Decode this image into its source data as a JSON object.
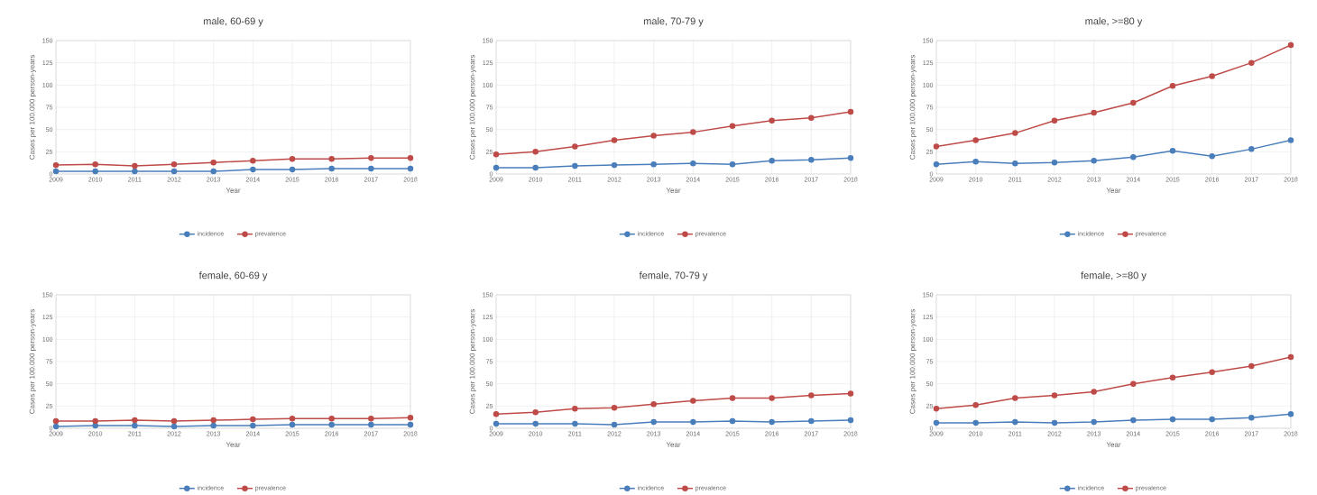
{
  "chart_data": [
    {
      "type": "line",
      "title": "male, 60-69 y",
      "xlabel": "Year",
      "ylabel": "Cases per 100.000 person-years",
      "categories": [
        "2009",
        "2010",
        "2011",
        "2012",
        "2013",
        "2014",
        "2015",
        "2016",
        "2017",
        "2018"
      ],
      "ylim": [
        0,
        150
      ],
      "yticks": [
        0,
        25,
        50,
        75,
        100,
        125,
        150
      ],
      "grid": true,
      "legend": "bottom",
      "marker": "circle",
      "series": [
        {
          "name": "incidence",
          "color": "#4a7ebb",
          "values": [
            3,
            3,
            3,
            3,
            3,
            5,
            5,
            6,
            6,
            6
          ]
        },
        {
          "name": "prevalence",
          "color": "#be4b48",
          "values": [
            10,
            11,
            9,
            11,
            13,
            15,
            17,
            17,
            18,
            18
          ]
        }
      ]
    },
    {
      "type": "line",
      "title": "male, 70-79 y",
      "xlabel": "Year",
      "ylabel": "Cases per 100.000 person-years",
      "categories": [
        "2009",
        "2010",
        "2011",
        "2012",
        "2013",
        "2014",
        "2015",
        "2016",
        "2017",
        "2018"
      ],
      "ylim": [
        0,
        150
      ],
      "yticks": [
        0,
        25,
        50,
        75,
        100,
        125,
        150
      ],
      "grid": true,
      "legend": "bottom",
      "marker": "circle",
      "series": [
        {
          "name": "incidence",
          "color": "#4a7ebb",
          "values": [
            7,
            7,
            9,
            10,
            11,
            12,
            11,
            15,
            16,
            18
          ]
        },
        {
          "name": "prevalence",
          "color": "#be4b48",
          "values": [
            22,
            25,
            31,
            38,
            43,
            47,
            54,
            60,
            63,
            70
          ]
        }
      ]
    },
    {
      "type": "line",
      "title": "male, >=80 y",
      "xlabel": "Year",
      "ylabel": "Cases per 100.000 person-years",
      "categories": [
        "2009",
        "2010",
        "2011",
        "2012",
        "2013",
        "2014",
        "2015",
        "2016",
        "2017",
        "2018"
      ],
      "ylim": [
        0,
        150
      ],
      "yticks": [
        0,
        25,
        50,
        75,
        100,
        125,
        150
      ],
      "grid": true,
      "legend": "bottom",
      "marker": "circle",
      "series": [
        {
          "name": "incidence",
          "color": "#4a7ebb",
          "values": [
            11,
            14,
            12,
            13,
            15,
            19,
            26,
            20,
            28,
            38
          ]
        },
        {
          "name": "prevalence",
          "color": "#be4b48",
          "values": [
            31,
            38,
            46,
            60,
            69,
            80,
            99,
            110,
            125,
            145
          ]
        }
      ]
    },
    {
      "type": "line",
      "title": "female, 60-69 y",
      "xlabel": "Year",
      "ylabel": "Cases per 100.000 person-years",
      "categories": [
        "2009",
        "2010",
        "2011",
        "2012",
        "2013",
        "2014",
        "2015",
        "2016",
        "2017",
        "2018"
      ],
      "ylim": [
        0,
        150
      ],
      "yticks": [
        0,
        25,
        50,
        75,
        100,
        125,
        150
      ],
      "grid": true,
      "legend": "bottom",
      "marker": "circle",
      "series": [
        {
          "name": "incidence",
          "color": "#4a7ebb",
          "values": [
            2,
            3,
            3,
            2,
            3,
            3,
            4,
            4,
            4,
            4
          ]
        },
        {
          "name": "prevalence",
          "color": "#be4b48",
          "values": [
            8,
            8,
            9,
            8,
            9,
            10,
            11,
            11,
            11,
            12
          ]
        }
      ]
    },
    {
      "type": "line",
      "title": "female, 70-79 y",
      "xlabel": "Year",
      "ylabel": "Cases per 100.000 person-years",
      "categories": [
        "2009",
        "2010",
        "2011",
        "2012",
        "2013",
        "2014",
        "2015",
        "2016",
        "2017",
        "2018"
      ],
      "ylim": [
        0,
        150
      ],
      "yticks": [
        0,
        25,
        50,
        75,
        100,
        125,
        150
      ],
      "grid": true,
      "legend": "bottom",
      "marker": "circle",
      "series": [
        {
          "name": "incidence",
          "color": "#4a7ebb",
          "values": [
            5,
            5,
            5,
            4,
            7,
            7,
            8,
            7,
            8,
            9
          ]
        },
        {
          "name": "prevalence",
          "color": "#be4b48",
          "values": [
            16,
            18,
            22,
            23,
            27,
            31,
            34,
            34,
            37,
            39
          ]
        }
      ]
    },
    {
      "type": "line",
      "title": "female, >=80 y",
      "xlabel": "Year",
      "ylabel": "Cases per 100.000 person-years",
      "categories": [
        "2009",
        "2010",
        "2011",
        "2012",
        "2013",
        "2014",
        "2015",
        "2016",
        "2017",
        "2018"
      ],
      "ylim": [
        0,
        150
      ],
      "yticks": [
        0,
        25,
        50,
        75,
        100,
        125,
        150
      ],
      "grid": true,
      "legend": "bottom",
      "marker": "circle",
      "series": [
        {
          "name": "incidence",
          "color": "#4a7ebb",
          "values": [
            6,
            6,
            7,
            6,
            7,
            9,
            10,
            10,
            12,
            16
          ]
        },
        {
          "name": "prevalence",
          "color": "#be4b48",
          "values": [
            22,
            26,
            34,
            37,
            41,
            50,
            57,
            63,
            70,
            80
          ]
        }
      ]
    }
  ]
}
